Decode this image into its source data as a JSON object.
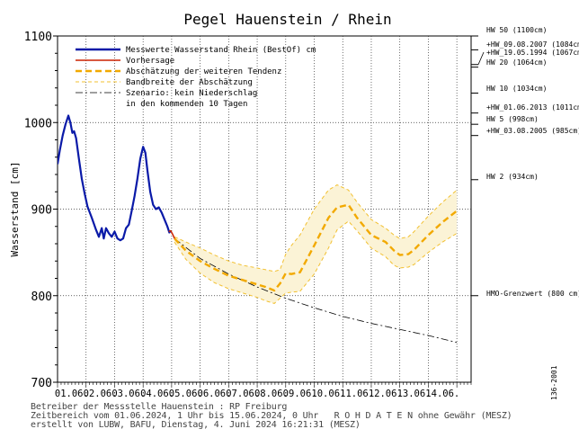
{
  "chart_data": {
    "type": "line",
    "title": "Pegel Hauenstein / Rhein",
    "ylabel": "Wasserstand [cm]",
    "xlabel": "",
    "ylim": [
      700,
      1100
    ],
    "xlim": [
      0,
      14.5
    ],
    "yticks": [
      700,
      800,
      900,
      1000,
      1100
    ],
    "xtick_labels": [
      "01.06.",
      "02.06.",
      "03.06.",
      "04.06.",
      "05.06.",
      "06.06.",
      "07.06.",
      "08.06.",
      "09.06.",
      "10.06.",
      "11.06.",
      "12.06.",
      "13.06.",
      "14.06."
    ],
    "grid": true,
    "legend": [
      {
        "label": "Messwerte Wasserstand Rhein   (BestOf)   cm",
        "color": "#0a1aa8",
        "style": "solid-thick"
      },
      {
        "label": "Vorhersage",
        "color": "#cc2200",
        "style": "solid"
      },
      {
        "label": "Abschätzung der weiteren Tendenz",
        "color": "#f2a900",
        "style": "dashed-thick"
      },
      {
        "label": "Bandbreite der Abschätzung",
        "color": "#f2c030",
        "style": "dashed-thin"
      },
      {
        "label": "Szenario: kein Niederschlag",
        "color": "#000000",
        "style": "dashdot"
      },
      {
        "label": "in den kommenden 10 Tagen",
        "color": null,
        "style": "none"
      }
    ],
    "legend_position": "top-left",
    "reference_levels": [
      {
        "label": "HW 50 (1100cm)",
        "value": 1100
      },
      {
        "label": "+HW_09.08.2007 (1084cm)",
        "value": 1084
      },
      {
        "label": "+HW_19.05.1994 (1067cm)",
        "value": 1067
      },
      {
        "label": "HW 20 (1064cm)",
        "value": 1064
      },
      {
        "label": "HW 10 (1034cm)",
        "value": 1034
      },
      {
        "label": "+HW_01.06.2013 (1011cm)",
        "value": 1011
      },
      {
        "label": "HW 5 (998cm)",
        "value": 998
      },
      {
        "label": "+HW_03.08.2005 (985cm)",
        "value": 985
      },
      {
        "label": "HW 2 (934cm)",
        "value": 934
      },
      {
        "label": "HMO-Grenzwert (800 cm)",
        "value": 800
      }
    ],
    "series": [
      {
        "name": "Messwerte Wasserstand Rhein   (BestOf)   cm",
        "color": "#0a1aa8",
        "x": [
          0.0,
          0.08,
          0.18,
          0.28,
          0.38,
          0.45,
          0.52,
          0.58,
          0.65,
          0.75,
          0.85,
          0.95,
          1.05,
          1.2,
          1.35,
          1.45,
          1.55,
          1.62,
          1.7,
          1.8,
          1.9,
          2.0,
          2.1,
          2.2,
          2.3,
          2.4,
          2.5,
          2.6,
          2.7,
          2.8,
          2.9,
          3.0,
          3.08,
          3.15,
          3.25,
          3.35,
          3.45,
          3.55,
          3.65,
          3.75,
          3.85,
          3.92,
          3.97
        ],
        "y": [
          952,
          968,
          985,
          998,
          1008,
          1000,
          988,
          990,
          982,
          958,
          935,
          918,
          903,
          890,
          876,
          868,
          878,
          866,
          878,
          872,
          868,
          874,
          866,
          864,
          866,
          878,
          882,
          898,
          915,
          935,
          958,
          972,
          965,
          945,
          920,
          905,
          900,
          902,
          896,
          888,
          880,
          873,
          875
        ]
      },
      {
        "name": "Vorhersage",
        "color": "#cc2200",
        "x": [
          3.9,
          3.97,
          4.05,
          4.1
        ],
        "y": [
          874,
          875,
          870,
          866
        ]
      },
      {
        "name": "Abschätzung der weiteren Tendenz",
        "color": "#f2a900",
        "x": [
          4.1,
          4.5,
          5.0,
          5.5,
          6.0,
          6.5,
          7.0,
          7.3,
          7.6,
          7.8,
          8.0,
          8.2,
          8.5,
          9.0,
          9.5,
          9.8,
          10.2,
          10.5,
          11.0,
          11.5,
          11.8,
          12.0,
          12.3,
          12.5,
          13.0,
          13.5,
          14.0
        ],
        "y": [
          866,
          852,
          840,
          831,
          823,
          818,
          813,
          810,
          806,
          814,
          826,
          825,
          827,
          858,
          890,
          902,
          905,
          890,
          870,
          862,
          852,
          847,
          848,
          853,
          870,
          885,
          898
        ]
      },
      {
        "name": "Szenario: kein Niederschlag",
        "color": "#000000",
        "x": [
          4.1,
          5.0,
          6.0,
          7.0,
          8.0,
          9.0,
          10.0,
          11.0,
          12.0,
          13.0,
          14.0
        ],
        "y": [
          866,
          843,
          825,
          810,
          797,
          786,
          776,
          768,
          761,
          754,
          746
        ]
      }
    ],
    "band": {
      "name": "Bandbreite der Abschätzung",
      "x": [
        4.1,
        4.5,
        5.0,
        5.5,
        6.0,
        6.5,
        7.0,
        7.3,
        7.6,
        7.8,
        8.0,
        8.2,
        8.5,
        9.0,
        9.5,
        9.8,
        10.2,
        10.5,
        11.0,
        11.5,
        11.8,
        12.0,
        12.3,
        12.5,
        13.0,
        13.5,
        14.0
      ],
      "upper": [
        868,
        862,
        855,
        847,
        840,
        835,
        832,
        830,
        828,
        830,
        848,
        858,
        870,
        900,
        922,
        928,
        922,
        908,
        888,
        878,
        870,
        866,
        868,
        874,
        892,
        908,
        922
      ],
      "lower": [
        862,
        842,
        826,
        815,
        808,
        803,
        798,
        794,
        791,
        797,
        803,
        804,
        805,
        825,
        855,
        876,
        886,
        875,
        855,
        845,
        835,
        832,
        833,
        836,
        850,
        862,
        872
      ]
    }
  },
  "footer": {
    "line1": "Betreiber der Messstelle Hauenstein : RP Freiburg",
    "line2": "Zeitbereich vom 01.06.2024, 1 Uhr bis 15.06.2024, 0 Uhr   R O H D A T E N ohne Gewähr (MESZ)",
    "line3": "erstellt von LUBW, BAFU, Dienstag, 4. Juni 2024 16:21:31 (MESZ)"
  },
  "side_code": "136-2001"
}
